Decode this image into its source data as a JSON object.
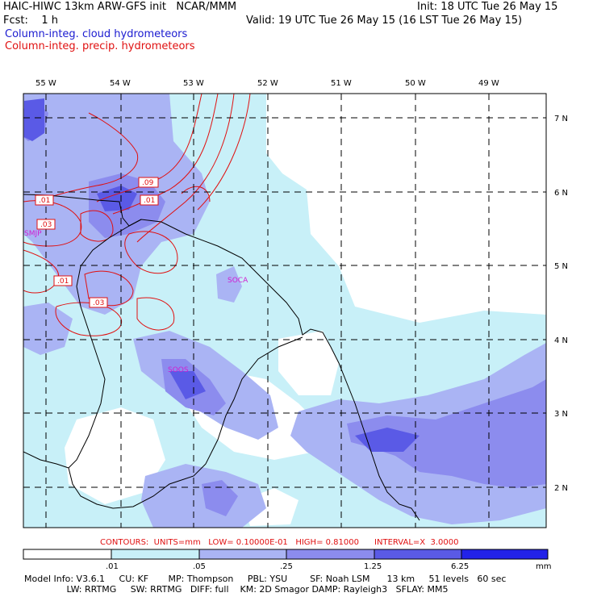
{
  "header": {
    "left_line1": "HAIC-HIWC 13km ARW-GFS init   NCAR/MMM",
    "left_line2": "Fcst:    1 h",
    "right_line1": "Init: 18 UTC Tue 26 May 15",
    "right_line2": "Valid: 19 UTC Tue 26 May 15 (16 LST Tue 26 May 15)",
    "field1": "Column-integ. cloud hydrometeors",
    "field2": "Column-integ. precip. hydrometeors",
    "field1_color": "#1a1ad0",
    "field2_color": "#e01010"
  },
  "map": {
    "lon_labels": [
      "55 W",
      "54 W",
      "53 W",
      "52 W",
      "51 W",
      "50 W",
      "49 W"
    ],
    "lat_labels": [
      "7 N",
      "6 N",
      "5 N",
      "4 N",
      "3 N",
      "2 N"
    ],
    "station_labels": [
      "SMJP",
      "SOCA",
      "SOOS"
    ],
    "contour_labels": [
      ".09",
      ".01",
      ".01",
      ".03",
      ".01",
      ".03"
    ]
  },
  "contour_info": {
    "text": "CONTOURS:  UNITS=mm   LOW= 0.10000E-01   HIGH= 0.81000      INTERVAL=X  3.0000"
  },
  "colorbar": {
    "labels": [
      ".01",
      ".05",
      ".25",
      "1.25",
      "6.25",
      "mm"
    ],
    "colors": [
      "#ffffff",
      "#c8f0f8",
      "#aab4f4",
      "#8c8cee",
      "#5a5ae6",
      "#2222e8"
    ]
  },
  "footer": {
    "line1": "Model Info: V3.6.1     CU: KF       MP: Thompson     PBL: YSU        SF: Noah LSM      13 km     51 levels   60 sec",
    "line2": "               LW: RRTMG     SW: RRTMG   DIFF: full    KM: 2D Smagor DAMP: Rayleigh3   SFLAY: MM5"
  }
}
